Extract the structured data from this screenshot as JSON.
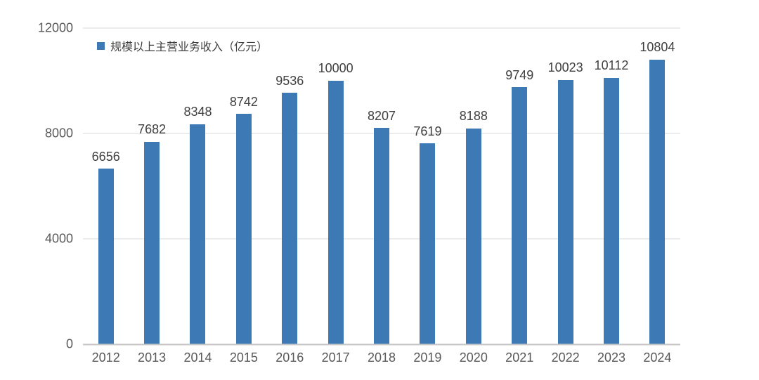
{
  "chart_data": {
    "type": "bar",
    "title": "",
    "legend": "规模以上主营业务收入（亿元）",
    "categories": [
      "2012",
      "2013",
      "2014",
      "2015",
      "2016",
      "2017",
      "2018",
      "2019",
      "2020",
      "2021",
      "2022",
      "2023",
      "2024"
    ],
    "values": [
      6656,
      7682,
      8348,
      8742,
      9536,
      10000,
      8207,
      7619,
      8188,
      9749,
      10023,
      10112,
      10804
    ],
    "xlabel": "",
    "ylabel": "",
    "ylim": [
      0,
      12000
    ],
    "yticks": [
      0,
      4000,
      8000,
      12000
    ],
    "grid": true,
    "legend_position": "top-left",
    "colors": {
      "bar": "#3c79b5",
      "value_label": "#404040",
      "tick_label": "#595959",
      "gridline": "#d9d9d9",
      "axis_line": "#c6c6c6",
      "background": "#ffffff"
    }
  }
}
